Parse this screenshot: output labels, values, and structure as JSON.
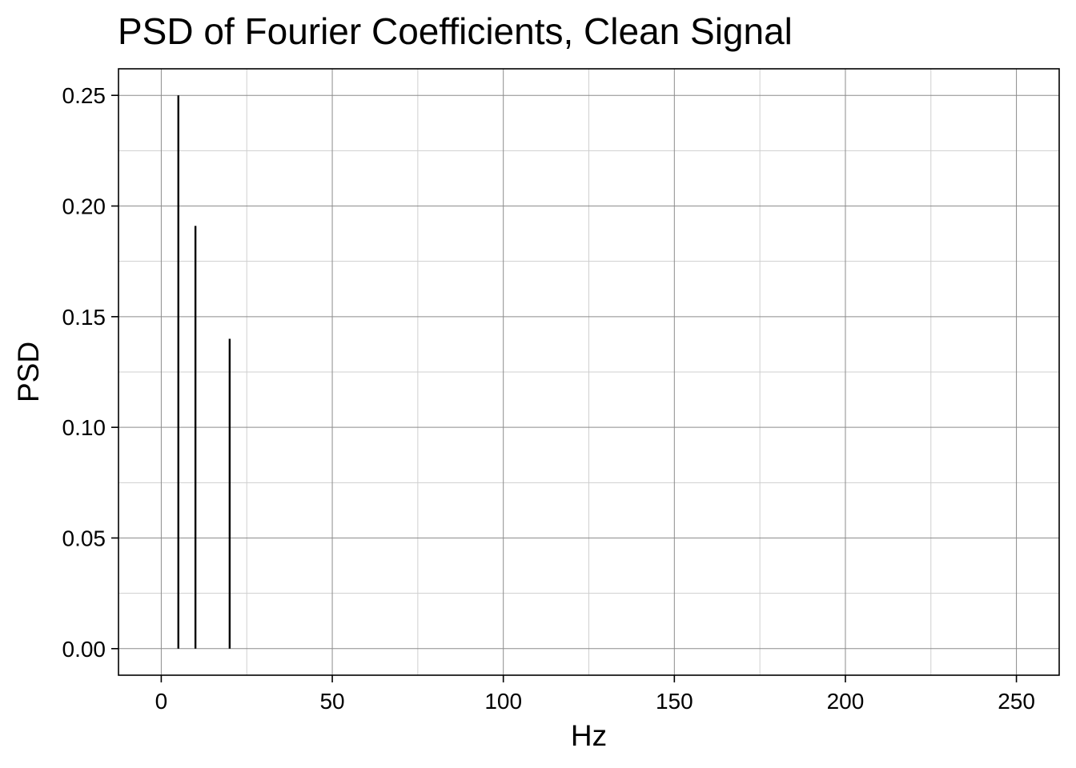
{
  "chart_data": {
    "type": "bar",
    "title": "PSD of Fourier Coefficients, Clean Signal",
    "xlabel": "Hz",
    "ylabel": "PSD",
    "xlim": [
      -12.5,
      262.5
    ],
    "ylim": [
      -0.012,
      0.262
    ],
    "x_ticks": [
      0,
      50,
      100,
      150,
      200,
      250
    ],
    "x_tick_labels": [
      "0",
      "50",
      "100",
      "150",
      "200",
      "250"
    ],
    "x_minor_ticks": [
      25,
      75,
      125,
      175,
      225
    ],
    "y_ticks": [
      0,
      0.05,
      0.1,
      0.15,
      0.2,
      0.25
    ],
    "y_tick_labels": [
      "0.00",
      "0.05",
      "0.10",
      "0.15",
      "0.20",
      "0.25"
    ],
    "y_minor_ticks": [
      0.025,
      0.075,
      0.125,
      0.175,
      0.225
    ],
    "grid": true,
    "series": [
      {
        "x": [
          5,
          10,
          20
        ],
        "values": [
          0.25,
          0.191,
          0.14
        ]
      }
    ],
    "colors": {
      "mark": "#000000",
      "grid_major": "#8c8c8c",
      "grid_minor": "#cfcfcf",
      "frame": "#000000"
    }
  }
}
